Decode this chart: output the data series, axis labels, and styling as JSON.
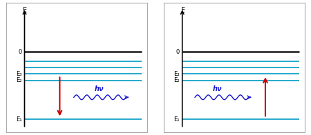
{
  "bg_color": "#ffffff",
  "border_color": "#aaaaaa",
  "energy_levels": {
    "E0": 0.62,
    "Ea": 0.55,
    "Eb": 0.5,
    "E3": 0.45,
    "E2": 0.4,
    "E1": 0.1
  },
  "E0_color": "#333333",
  "cyan_color": "#22aacc",
  "arrow_color": "#cc0000",
  "photon_color": "#1111cc",
  "photon_label": "hν",
  "axis_label": "E",
  "label_0": "0",
  "label_E3": "E₃",
  "label_E2": "E₂",
  "label_E1": "E₁"
}
